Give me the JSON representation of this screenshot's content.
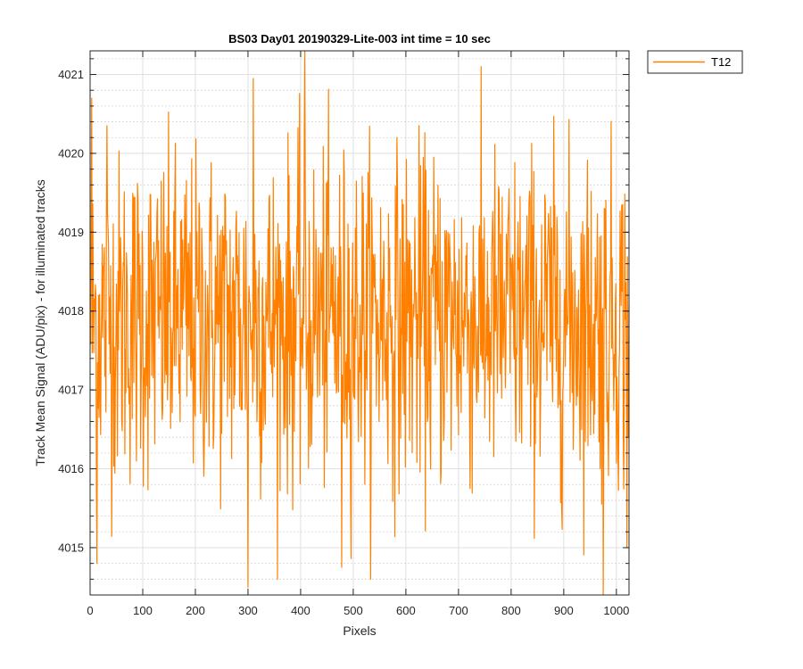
{
  "chart_data": {
    "type": "line",
    "title": "BS03 Day01 20190329-Lite-003 int time = 10 sec",
    "xlabel": "Pixels",
    "ylabel": "Track Mean Signal (ADU/pix) - for illuminated tracks",
    "xlim": [
      0,
      1024
    ],
    "ylim": [
      4014.4,
      4021.3
    ],
    "xticks": [
      0,
      100,
      200,
      300,
      400,
      500,
      600,
      700,
      800,
      900,
      1000
    ],
    "yticks": [
      4015,
      4016,
      4017,
      4018,
      4019,
      4020,
      4021
    ],
    "y_minor_step": 0.2,
    "grid": true,
    "legend_position": "outside-top-right",
    "colors": {
      "series": "#ff8000",
      "axes": "#262626",
      "grid": "#dfdfdf"
    },
    "noise_model": {
      "mean": 4017.9,
      "std": 1.05,
      "n_points": 1024
    },
    "series": [
      {
        "name": "T12",
        "color": "#ff8000",
        "x_start": 1,
        "x_step": 1,
        "notable_points": [
          {
            "x": 3,
            "y": 4020.7
          },
          {
            "x": 13,
            "y": 4014.8
          },
          {
            "x": 32,
            "y": 4020.35
          },
          {
            "x": 300,
            "y": 4014.5
          },
          {
            "x": 310,
            "y": 4020.95
          },
          {
            "x": 408,
            "y": 4021.3
          },
          {
            "x": 478,
            "y": 4014.75
          },
          {
            "x": 975,
            "y": 4014.4
          },
          {
            "x": 1020,
            "y": 4015.0
          }
        ]
      }
    ]
  }
}
